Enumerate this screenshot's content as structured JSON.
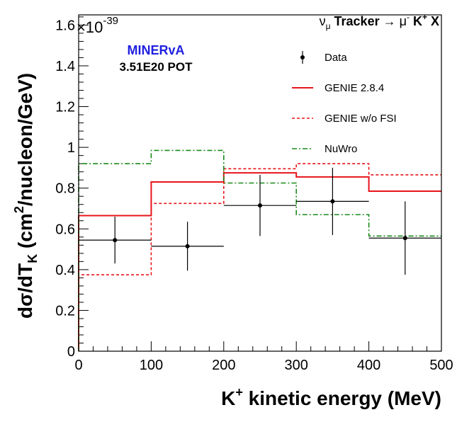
{
  "chart_data": {
    "type": "histogram",
    "process_label": {
      "nu": "ν",
      "nu_sub": "μ",
      "middle": " Tracker → ",
      "mu": "μ",
      "mu_sup": "-",
      "k": " K",
      "k_sup": "+",
      "x": " X"
    },
    "experiment": "MINERvA",
    "pot_label": "3.51E20 POT",
    "xlabel": {
      "main": "K",
      "sup": "+",
      "rest": " kinetic energy (MeV)"
    },
    "ylabel": {
      "pre": "dσ/dT",
      "sub": "K",
      "mid": " (cm",
      "sup": "2",
      "post": "/nucleon/GeV)"
    },
    "y_exponent": {
      "base": "×10",
      "power": "-39"
    },
    "xlim": [
      0,
      500
    ],
    "ylim": [
      0,
      1.65
    ],
    "x_ticks": [
      0,
      100,
      200,
      300,
      400,
      500
    ],
    "y_ticks": [
      0,
      0.2,
      0.4,
      0.6,
      0.8,
      1,
      1.2,
      1.4,
      1.6
    ],
    "bin_edges": [
      0,
      100,
      200,
      300,
      400,
      500
    ],
    "series": [
      {
        "name": "Data",
        "kind": "points",
        "color": "#000000",
        "x": [
          50,
          150,
          250,
          350,
          450
        ],
        "y": [
          0.545,
          0.515,
          0.715,
          0.735,
          0.555
        ],
        "yerr": [
          0.115,
          0.12,
          0.15,
          0.165,
          0.18
        ]
      },
      {
        "name": "GENIE 2.8.4",
        "kind": "step",
        "color": "#e8141a",
        "dash": "solid",
        "values": [
          0.665,
          0.83,
          0.875,
          0.855,
          0.785
        ]
      },
      {
        "name": "GENIE w/o FSI",
        "kind": "step",
        "color": "#e8141a",
        "dash": "dashed",
        "values": [
          0.375,
          0.725,
          0.895,
          0.92,
          0.865
        ]
      },
      {
        "name": "NuWro",
        "kind": "step",
        "color": "#1a8a1a",
        "dash": "dashdot",
        "values": [
          0.92,
          0.985,
          0.825,
          0.67,
          0.565
        ]
      }
    ],
    "legend_position": "top-right",
    "grid": false
  }
}
